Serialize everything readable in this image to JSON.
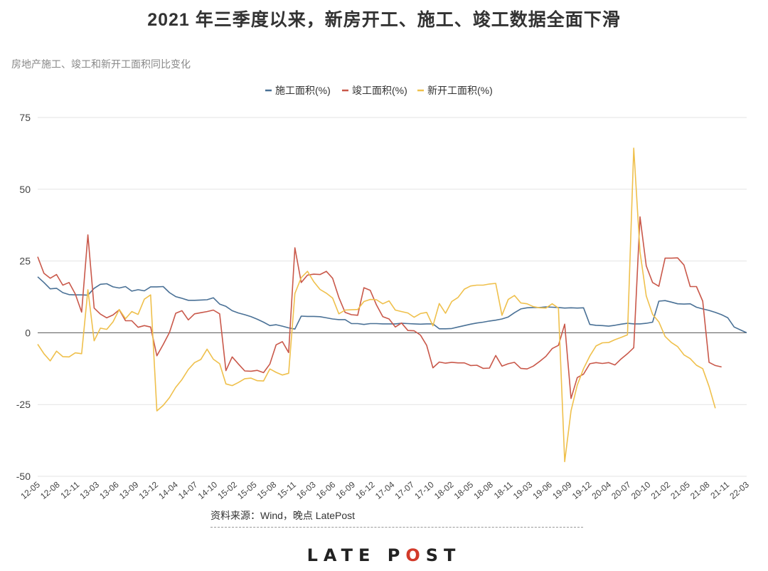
{
  "header": {
    "title": "2021 年三季度以来，新房开工、施工、竣工数据全面下滑",
    "subtitle": "房地产施工、竣工和新开工面积同比变化"
  },
  "footer": {
    "source": "资料来源：Wind，晚点 LatePost",
    "logo_left": "LATE P",
    "logo_mark": "O",
    "logo_right": "ST"
  },
  "colors": {
    "series1": "#4a7196",
    "series2": "#c9584a",
    "series3": "#efc04c",
    "grid": "#e3e3e3",
    "zero": "#555555",
    "text": "#444444"
  },
  "chart_data": {
    "type": "line",
    "title": "房地产施工、竣工和新开工面积同比变化",
    "xlabel": "",
    "ylabel": "",
    "ylim": [
      -50,
      75
    ],
    "yticks": [
      75,
      50,
      25,
      0,
      -25,
      -50
    ],
    "grid": true,
    "legend_position": "top-center",
    "x_tick_labels": [
      "12-05",
      "12-08",
      "12-11",
      "13-03",
      "13-06",
      "13-09",
      "13-12",
      "14-04",
      "14-07",
      "14-10",
      "15-02",
      "15-05",
      "15-08",
      "15-11",
      "16-03",
      "16-06",
      "16-09",
      "16-12",
      "17-04",
      "17-07",
      "17-10",
      "18-02",
      "18-05",
      "18-08",
      "18-11",
      "19-03",
      "19-06",
      "19-09",
      "19-12",
      "20-04",
      "20-07",
      "20-10",
      "21-02",
      "21-05",
      "21-08",
      "21-11",
      "22-03"
    ],
    "series": [
      {
        "name": "施工面积(%)",
        "values": [
          19.5,
          17.5,
          15.3,
          15.5,
          14,
          13.3,
          13.2,
          13.2,
          13.1,
          15.5,
          16.9,
          17.1,
          16,
          15.6,
          16.1,
          14.5,
          15,
          14.6,
          16,
          16,
          16.1,
          14,
          12.6,
          12,
          11.3,
          11.3,
          11.4,
          11.5,
          12.2,
          10,
          9.2,
          7.7,
          6.9,
          6.3,
          5.6,
          4.7,
          3.7,
          2.5,
          2.8,
          2.3,
          1.7,
          1.3,
          5.8,
          5.7,
          5.7,
          5.6,
          5.2,
          4.8,
          4.6,
          4.6,
          3.2,
          3.2,
          2.9,
          3.2,
          3.2,
          3.1,
          3.1,
          3.1,
          3.3,
          3.2,
          3.1,
          3,
          3.1,
          3.1,
          1.4,
          1.4,
          1.5,
          2,
          2.5,
          3,
          3.4,
          3.7,
          4.1,
          4.4,
          4.8,
          5.5,
          7,
          8.3,
          8.7,
          8.8,
          8.8,
          9,
          8.9,
          8.8,
          8.6,
          8.7,
          8.6,
          8.7,
          2.9,
          2.6,
          2.5,
          2.3,
          2.6,
          3,
          3.3,
          3.1,
          3.1,
          3.3,
          3.7,
          11,
          11.2,
          10.7,
          10.1,
          10,
          10.1,
          8.9,
          8.3,
          7.8,
          7.1,
          6.3,
          5.2,
          2,
          1,
          0
        ]
      },
      {
        "name": "竣工面积(%)",
        "values": [
          26.5,
          20.7,
          19,
          20.3,
          16.6,
          17.5,
          13.5,
          7.2,
          34.1,
          8.6,
          6.5,
          5.2,
          6.2,
          8,
          4.2,
          4.2,
          1.9,
          2.5,
          2,
          -8,
          -4.1,
          0.1,
          6.8,
          7.7,
          4.5,
          6.6,
          7,
          7.4,
          7.9,
          6.6,
          -13.2,
          -8.4,
          -10.9,
          -13.3,
          -13.4,
          -13.1,
          -13.9,
          -10.9,
          -4.2,
          -3.1,
          -6.9,
          29.6,
          17.5,
          20.1,
          20.4,
          20.3,
          21.4,
          19,
          12.3,
          7.1,
          6.3,
          6.1,
          15.7,
          14.8,
          9.7,
          5.6,
          4.8,
          2,
          3.4,
          0.8,
          0.7,
          -0.8,
          -4.4,
          -12.2,
          -10.2,
          -10.6,
          -10.3,
          -10.5,
          -10.5,
          -11.4,
          -11.3,
          -12.4,
          -12.3,
          -7.9,
          -11.6,
          -10.8,
          -10.3,
          -12.4,
          -12.6,
          -11.6,
          -10,
          -8.2,
          -5.5,
          -4.4,
          3,
          -22.9,
          -15.6,
          -14.4,
          -10.8,
          -10.4,
          -10.7,
          -10.4,
          -11.2,
          -9.1,
          -7.3,
          -5.2,
          40.4,
          23.3,
          17.5,
          16.2,
          26,
          26,
          26.1,
          23.6,
          16.1,
          16.1,
          11,
          -10.3,
          -11.4,
          -11.9
        ]
      },
      {
        "name": "新开工面积(%)",
        "values": [
          -4,
          -7.3,
          -9.8,
          -6.4,
          -8.3,
          -8.4,
          -7,
          -7.3,
          15,
          -2.8,
          1.6,
          1.2,
          3.8,
          8.1,
          4.9,
          7.4,
          6.4,
          11.7,
          13.2,
          -27.2,
          -25.3,
          -22.6,
          -19,
          -16.3,
          -12.8,
          -10.4,
          -9.3,
          -5.7,
          -9.2,
          -10.8,
          -17.8,
          -18.4,
          -17.3,
          -16,
          -15.8,
          -16.7,
          -16.8,
          -12.6,
          -13.8,
          -14.7,
          -14.1,
          13.7,
          19.2,
          21.4,
          17.8,
          15.1,
          13.8,
          12.1,
          6.6,
          7.9,
          8,
          8.1,
          10.9,
          11.6,
          11.5,
          10.1,
          11.1,
          7.9,
          7.4,
          6.9,
          5.4,
          6.7,
          7.1,
          2.4,
          10.2,
          6.8,
          10.9,
          12.3,
          15.2,
          16.3,
          16.6,
          16.6,
          17,
          17.2,
          6.1,
          11.6,
          13,
          10.4,
          10.1,
          9.1,
          8.7,
          8.6,
          10.1,
          8.6,
          -44.9,
          -27.2,
          -18.2,
          -12.5,
          -8.1,
          -4.6,
          -3.5,
          -3.4,
          -2.4,
          -1.6,
          -0.7,
          64.3,
          28.2,
          12.8,
          6.4,
          3.8,
          -1.3,
          -3.4,
          -4.8,
          -7.7,
          -9,
          -11.3,
          -12.5,
          -18.7,
          -26.3
        ]
      }
    ]
  }
}
